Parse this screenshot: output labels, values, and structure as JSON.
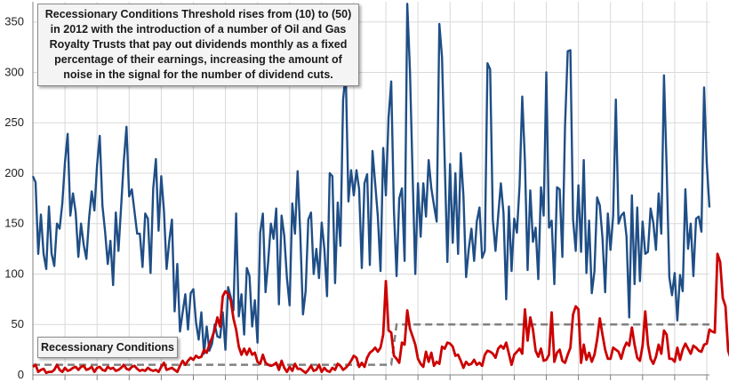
{
  "annotation": "Recessionary Conditions Threshold rises from (10) to (50) in 2012 with the introduction of a number of Oil and Gas Royalty Trusts that pay out dividends monthly as a fixed percentage of their earnings, increasing the amount of noise in the signal for the number of dividend cuts.",
  "threshold_label": "Recessionary Conditions",
  "colors": {
    "total": "#1f4e86",
    "cuts": "#cc0000",
    "threshold": "#808080",
    "grid": "#d9d9d9"
  },
  "chart_data": {
    "type": "line",
    "ylim": [
      0,
      370
    ],
    "yticks": [
      0,
      50,
      100,
      150,
      200,
      250,
      300,
      350
    ],
    "grid": true,
    "series": [
      {
        "key": "total",
        "style": "solid",
        "values": [
          197,
          191,
          120,
          159,
          120,
          105,
          167,
          120,
          108,
          150,
          145,
          170,
          211,
          239,
          158,
          180,
          161,
          117,
          150,
          129,
          115,
          155,
          182,
          163,
          208,
          237,
          168,
          142,
          110,
          133,
          89,
          161,
          123,
          167,
          212,
          246,
          177,
          184,
          162,
          140,
          140,
          107,
          160,
          155,
          101,
          185,
          214,
          143,
          197,
          163,
          105,
          133,
          154,
          63,
          110,
          43,
          62,
          80,
          45,
          81,
          85,
          52,
          35,
          62,
          21,
          48,
          24,
          31,
          50,
          38,
          37,
          62,
          25,
          87,
          77,
          64,
          160,
          58,
          80,
          40,
          106,
          98,
          48,
          74,
          32,
          141,
          160,
          82,
          113,
          150,
          135,
          165,
          70,
          158,
          138,
          96,
          69,
          170,
          140,
          202,
          139,
          60,
          83,
          154,
          161,
          100,
          125,
          96,
          151,
          125,
          78,
          200,
          197,
          91,
          171,
          128,
          273,
          300,
          172,
          203,
          178,
          203,
          184,
          106,
          190,
          199,
          109,
          222,
          190,
          157,
          103,
          225,
          178,
          255,
          291,
          164,
          98,
          175,
          185,
          113,
          368,
          302,
          198,
          100,
          190,
          137,
          190,
          157,
          213,
          185,
          168,
          152,
          348,
          315,
          212,
          112,
          209,
          131,
          200,
          120,
          220,
          178,
          97,
          125,
          145,
          113,
          152,
          166,
          116,
          123,
          309,
          303,
          154,
          123,
          158,
          190,
          160,
          75,
          167,
          103,
          155,
          141,
          188,
          276,
          212,
          104,
          183,
          132,
          146,
          95,
          186,
          158,
          300,
          146,
          153,
          90,
          186,
          184,
          117,
          247,
          321,
          322,
          154,
          123,
          188,
          122,
          213,
          101,
          153,
          81,
          103,
          176,
          168,
          136,
          82,
          160,
          124,
          158,
          273,
          150,
          158,
          161,
          137,
          57,
          178,
          90,
          166,
          93,
          152,
          120,
          122,
          165,
          151,
          124,
          180,
          140,
          297,
          205,
          97,
          79,
          101,
          54,
          99,
          83,
          184,
          125,
          150,
          98,
          155,
          157,
          142,
          285,
          210,
          166
        ]
      },
      {
        "key": "cuts",
        "style": "solid",
        "values": [
          8,
          10,
          3,
          5,
          6,
          2,
          3,
          3,
          5,
          10,
          5,
          3,
          7,
          4,
          5,
          7,
          8,
          5,
          8,
          9,
          5,
          6,
          8,
          3,
          7,
          8,
          5,
          4,
          8,
          6,
          7,
          4,
          5,
          7,
          10,
          6,
          5,
          8,
          9,
          6,
          4,
          5,
          4,
          7,
          5,
          4,
          5,
          3,
          8,
          12,
          5,
          6,
          7,
          5,
          3,
          9,
          14,
          10,
          14,
          17,
          15,
          19,
          17,
          18,
          25,
          22,
          30,
          37,
          45,
          57,
          48,
          78,
          83,
          80,
          74,
          56,
          45,
          28,
          20,
          26,
          20,
          26,
          20,
          22,
          13,
          11,
          20,
          12,
          10,
          9,
          10,
          12,
          5,
          14,
          7,
          3,
          8,
          4,
          11,
          6,
          6,
          4,
          2,
          5,
          9,
          4,
          5,
          10,
          3,
          7,
          4,
          3,
          7,
          5,
          11,
          9,
          5,
          7,
          10,
          14,
          19,
          17,
          8,
          12,
          8,
          17,
          22,
          24,
          27,
          23,
          27,
          40,
          93,
          44,
          42,
          19,
          16,
          12,
          32,
          30,
          64,
          46,
          38,
          30,
          16,
          11,
          8,
          23,
          13,
          22,
          9,
          13,
          11,
          28,
          26,
          32,
          31,
          28,
          19,
          20,
          14,
          7,
          13,
          10,
          11,
          15,
          10,
          12,
          9,
          20,
          24,
          23,
          21,
          17,
          26,
          29,
          26,
          32,
          21,
          10,
          20,
          23,
          26,
          21,
          65,
          34,
          57,
          45,
          24,
          18,
          26,
          14,
          15,
          20,
          62,
          13,
          22,
          25,
          14,
          12,
          20,
          27,
          60,
          68,
          65,
          12,
          30,
          15,
          22,
          13,
          20,
          35,
          56,
          40,
          25,
          16,
          16,
          27,
          25,
          23,
          16,
          26,
          32,
          29,
          47,
          30,
          17,
          14,
          29,
          63,
          30,
          16,
          11,
          18,
          30,
          21,
          44,
          40,
          16,
          16,
          13,
          27,
          15,
          25,
          31,
          26,
          21,
          29,
          27,
          24,
          23,
          30,
          31,
          45,
          43,
          42,
          120,
          112,
          76,
          68,
          24,
          16,
          17,
          18,
          27,
          36,
          22,
          9,
          15,
          13,
          12
        ]
      },
      {
        "key": "threshold",
        "style": "dashed",
        "step_index": 136,
        "values": [
          10,
          50
        ]
      }
    ]
  }
}
